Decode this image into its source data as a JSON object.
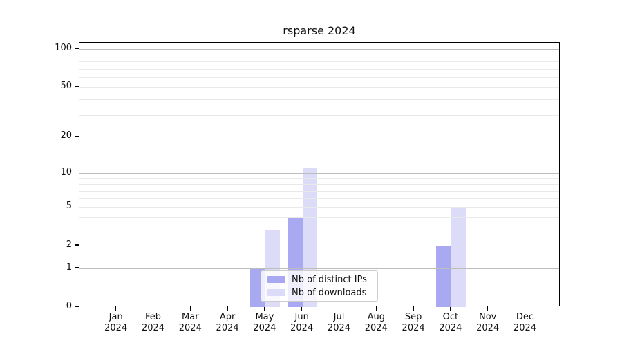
{
  "title": "rsparse 2024",
  "chart_data": {
    "type": "bar",
    "title": "rsparse 2024",
    "categories": [
      "Jan 2024",
      "Feb 2024",
      "Mar 2024",
      "Apr 2024",
      "May 2024",
      "Jun 2024",
      "Jul 2024",
      "Aug 2024",
      "Sep 2024",
      "Oct 2024",
      "Nov 2024",
      "Dec 2024"
    ],
    "x_tick_months": [
      "Jan",
      "Feb",
      "Mar",
      "Apr",
      "May",
      "Jun",
      "Jul",
      "Aug",
      "Sep",
      "Oct",
      "Nov",
      "Dec"
    ],
    "x_tick_year": "2024",
    "series": [
      {
        "name": "Nb of distinct IPs",
        "color": "#a9a9f2",
        "values": [
          0,
          0,
          0,
          0,
          1,
          4,
          0,
          0,
          0,
          2,
          0,
          0
        ]
      },
      {
        "name": "Nb of downloads",
        "color": "#dcdcf8",
        "values": [
          0,
          0,
          0,
          0,
          3,
          11,
          0,
          0,
          0,
          5,
          0,
          0
        ]
      }
    ],
    "yscale": "log1p",
    "ylim": [
      0,
      113
    ],
    "y_tick_labels": [
      0,
      1,
      2,
      5,
      10,
      20,
      50,
      100
    ],
    "y_grid_major": [
      1,
      10,
      100
    ],
    "y_grid_minor": [
      2,
      3,
      4,
      5,
      6,
      7,
      8,
      9,
      20,
      30,
      40,
      50,
      60,
      70,
      80,
      90
    ],
    "xlabel": "",
    "ylabel": "",
    "grid": true,
    "legend_position": "lower center"
  },
  "colors": {
    "background": "#ffffff",
    "spine": "#000000",
    "grid_major": "#bdbdbd",
    "grid_minor": "#e9e9e9",
    "text": "#111111",
    "legend_border": "#cccccc",
    "legend_background": "rgba(255,255,255,0.8)"
  }
}
